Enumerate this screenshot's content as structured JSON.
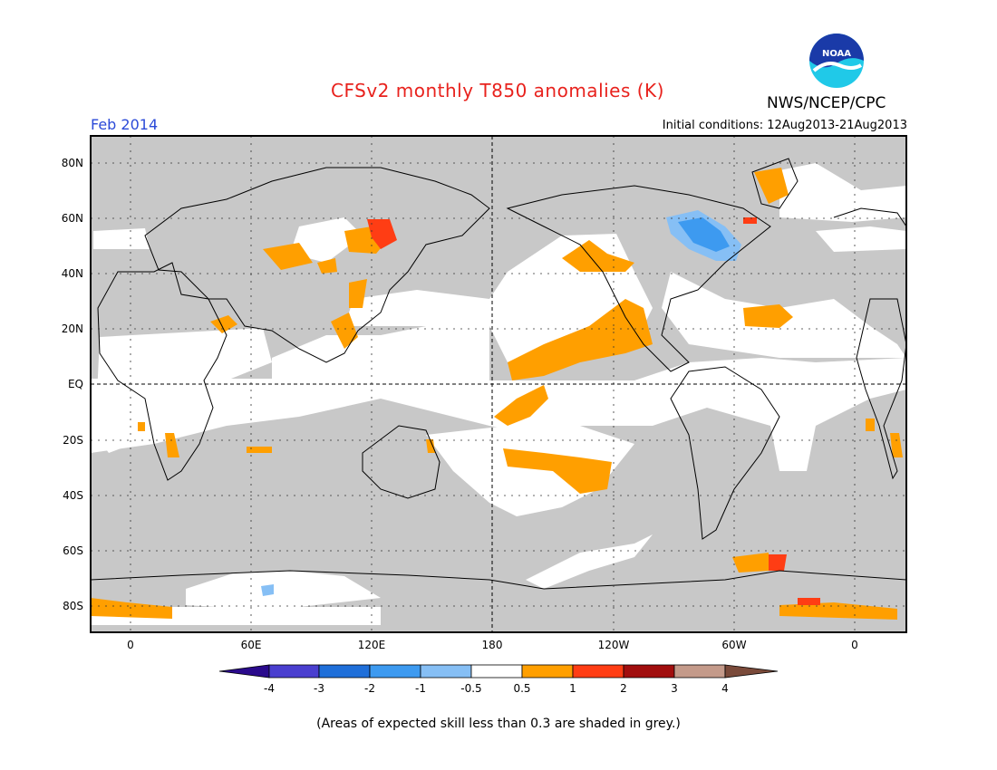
{
  "title": "CFSv2 monthly T850 anomalies (K)",
  "agency": "NWS/NCEP/CPC",
  "logo_text": "NOAA",
  "target_month": "Feb 2014",
  "initial_conditions": "Initial conditions: 12Aug2013-21Aug2013",
  "footnote": "(Areas of expected skill less than 0.3 are shaded in grey.)",
  "lat_labels": [
    "80N",
    "60N",
    "40N",
    "20N",
    "EQ",
    "20S",
    "40S",
    "60S",
    "80S"
  ],
  "lon_labels": [
    "0",
    "60E",
    "120E",
    "180",
    "120W",
    "60W",
    "0"
  ],
  "colorbar": {
    "labels": [
      "-4",
      "-3",
      "-2",
      "-1",
      "-0.5",
      "0.5",
      "1",
      "2",
      "3",
      "4"
    ],
    "colors": [
      "#2a0a8c",
      "#4a3fcf",
      "#1f6fd9",
      "#3d9af0",
      "#86bff5",
      "#ffffff",
      "#ff9f00",
      "#ff3d14",
      "#a10e0e",
      "#c49a8a",
      "#7a4a3a"
    ]
  },
  "colors": {
    "skill_grey": "#c8c8c8",
    "warm_05_1": "#ff9f00",
    "warm_1_2": "#ff3d14",
    "cold_05_1": "#86bff5",
    "cold_1_2": "#3d9af0",
    "title_red": "#e8221d",
    "month_blue": "#2b4ad8"
  }
}
